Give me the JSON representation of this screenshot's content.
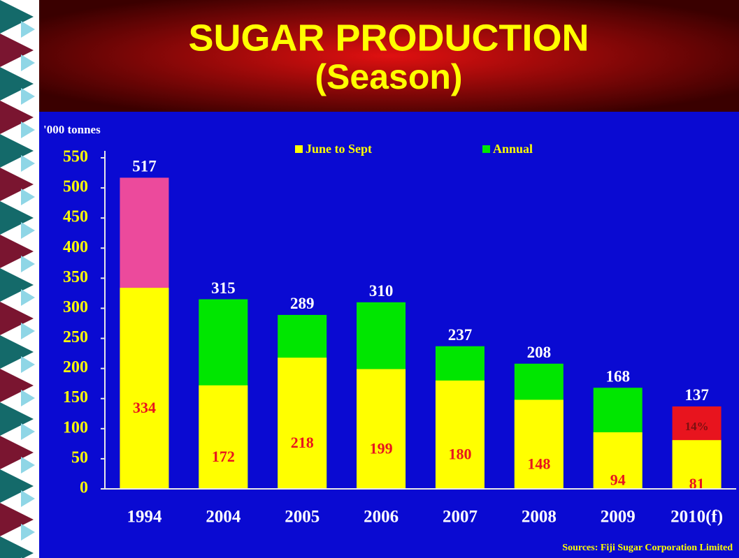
{
  "chart_data": {
    "type": "bar",
    "title": "SUGAR PRODUCTION",
    "subtitle": "(Season)",
    "y_label": "'000 tonnes",
    "source": "Sources: Fiji Sugar Corporation Limited",
    "annotation": "14%",
    "categories": [
      "1994",
      "2004",
      "2005",
      "2006",
      "2007",
      "2008",
      "2009",
      "2010(f)"
    ],
    "series": [
      {
        "name": "June to Sept",
        "color": "#ffff00",
        "values": [
          334,
          172,
          218,
          199,
          180,
          148,
          94,
          81
        ]
      },
      {
        "name": "Annual",
        "color": "#00e600",
        "colors": [
          "#ec4a9c",
          "#00e600",
          "#00e600",
          "#00e600",
          "#00e600",
          "#00e600",
          "#00e600",
          "#e8141e"
        ],
        "values": [
          517,
          315,
          289,
          310,
          237,
          208,
          168,
          137
        ]
      }
    ],
    "ylim": [
      0,
      550
    ],
    "yticks": [
      0,
      50,
      100,
      150,
      200,
      250,
      300,
      350,
      400,
      450,
      500,
      550
    ],
    "grid": false
  }
}
